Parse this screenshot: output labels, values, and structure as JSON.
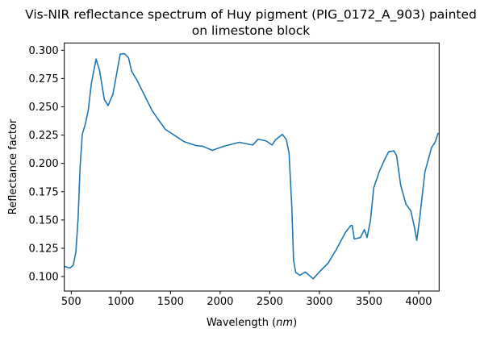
{
  "chart_data": {
    "type": "line",
    "title": "Vis-NIR reflectance spectrum of Huy pigment (PIG_0172_A_903) painted on limestone block",
    "title_lines": [
      "Vis-NIR reflectance spectrum of Huy pigment (PIG_0172_A_903) painted",
      "on limestone block"
    ],
    "xlabel": "Wavelength (nm)",
    "ylabel": "Reflectance factor",
    "xlim": [
      430,
      4206
    ],
    "ylim": [
      0.0872,
      0.3064
    ],
    "xticks": [
      500,
      1000,
      1500,
      2000,
      2500,
      3000,
      3500,
      4000
    ],
    "xtick_labels": [
      "500",
      "1000",
      "1500",
      "2000",
      "2500",
      "3000",
      "3500",
      "4000"
    ],
    "yticks": [
      0.1,
      0.125,
      0.15,
      0.175,
      0.2,
      0.225,
      0.25,
      0.275,
      0.3
    ],
    "ytick_labels": [
      "0.100",
      "0.125",
      "0.150",
      "0.175",
      "0.200",
      "0.225",
      "0.250",
      "0.275",
      "0.300"
    ],
    "grid": false,
    "line_color": "#1f77b4",
    "series": [
      {
        "x": [
          432,
          487,
          520,
          546,
          568,
          589,
          611,
          644,
          671,
          703,
          750,
          784,
          833,
          871,
          920,
          993,
          1036,
          1077,
          1109,
          1164,
          1231,
          1313,
          1367,
          1448,
          1543,
          1638,
          1760,
          1828,
          1922,
          2031,
          2193,
          2328,
          2383,
          2464,
          2523,
          2559,
          2627,
          2667,
          2694,
          2722,
          2740,
          2762,
          2803,
          2857,
          2938,
          3006,
          3087,
          3169,
          3263,
          3317,
          3331,
          3352,
          3412,
          3453,
          3480,
          3515,
          3547,
          3602,
          3656,
          3697,
          3751,
          3778,
          3819,
          3872,
          3921,
          3954,
          3981,
          4008,
          4063,
          4130,
          4165,
          4197
        ],
        "y": [
          0.109,
          0.1075,
          0.11,
          0.1215,
          0.15,
          0.197,
          0.2257,
          0.2354,
          0.247,
          0.2708,
          0.2922,
          0.2826,
          0.2566,
          0.2511,
          0.2613,
          0.2965,
          0.2969,
          0.2933,
          0.2815,
          0.2732,
          0.2613,
          0.247,
          0.2399,
          0.23,
          0.2246,
          0.2191,
          0.2157,
          0.215,
          0.2115,
          0.215,
          0.2186,
          0.2162,
          0.2214,
          0.2198,
          0.2162,
          0.221,
          0.2257,
          0.221,
          0.2091,
          0.1616,
          0.1142,
          0.1036,
          0.1011,
          0.104,
          0.0981,
          0.1047,
          0.1118,
          0.1237,
          0.1391,
          0.1451,
          0.1451,
          0.1332,
          0.1344,
          0.1415,
          0.1344,
          0.15,
          0.1783,
          0.1925,
          0.2032,
          0.2103,
          0.211,
          0.2068,
          0.1806,
          0.1641,
          0.1581,
          0.145,
          0.132,
          0.1498,
          0.1925,
          0.2139,
          0.2186,
          0.2269
        ]
      }
    ]
  }
}
